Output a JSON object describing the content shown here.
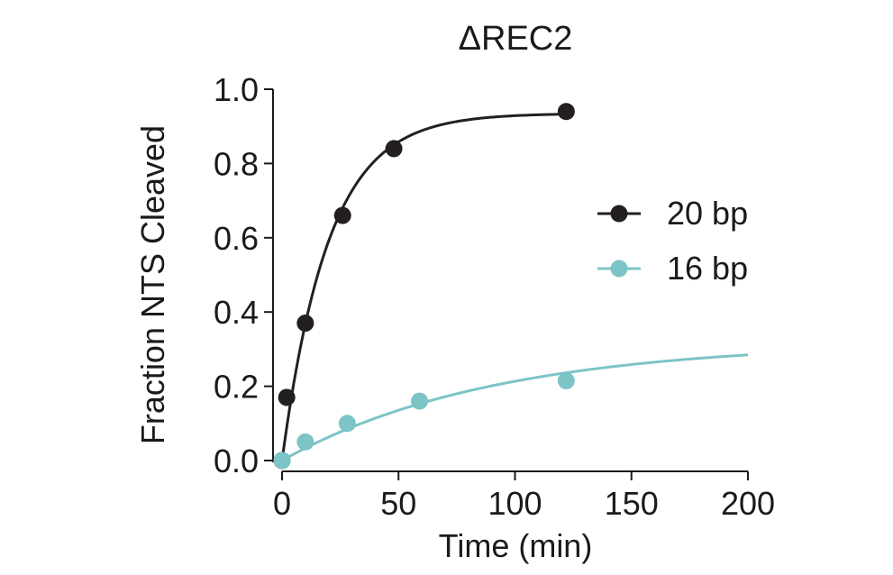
{
  "chart_data": {
    "type": "scatter",
    "title": "ΔREC2",
    "xlabel": "Time (min)",
    "ylabel": "Fraction NTS Cleaved",
    "xlim": [
      0,
      200
    ],
    "ylim": [
      0,
      1.0
    ],
    "x_ticks": [
      "0",
      "50",
      "100",
      "150",
      "200"
    ],
    "y_ticks": [
      "0.0",
      "0.2",
      "0.4",
      "0.6",
      "0.8",
      "1.0"
    ],
    "x_tick_values": [
      0,
      50,
      100,
      150,
      200
    ],
    "y_tick_values": [
      0,
      0.2,
      0.4,
      0.6,
      0.8,
      1.0
    ],
    "legend_position": "right",
    "series": [
      {
        "name": "20 bp",
        "color": "#231f20",
        "x": [
          0,
          2,
          10,
          26,
          48,
          122
        ],
        "y": [
          0,
          0.17,
          0.37,
          0.66,
          0.84,
          0.94
        ],
        "fit": {
          "model": "exponential",
          "plateau": 0.935,
          "k": 0.05,
          "x_max": 122
        }
      },
      {
        "name": "16 bp",
        "color": "#7cc4c6",
        "x": [
          0,
          10,
          28,
          59,
          122
        ],
        "y": [
          0,
          0.05,
          0.1,
          0.16,
          0.215
        ],
        "fit": {
          "model": "exponential",
          "plateau": 0.32,
          "k": 0.011,
          "x_max": 200
        }
      }
    ]
  }
}
